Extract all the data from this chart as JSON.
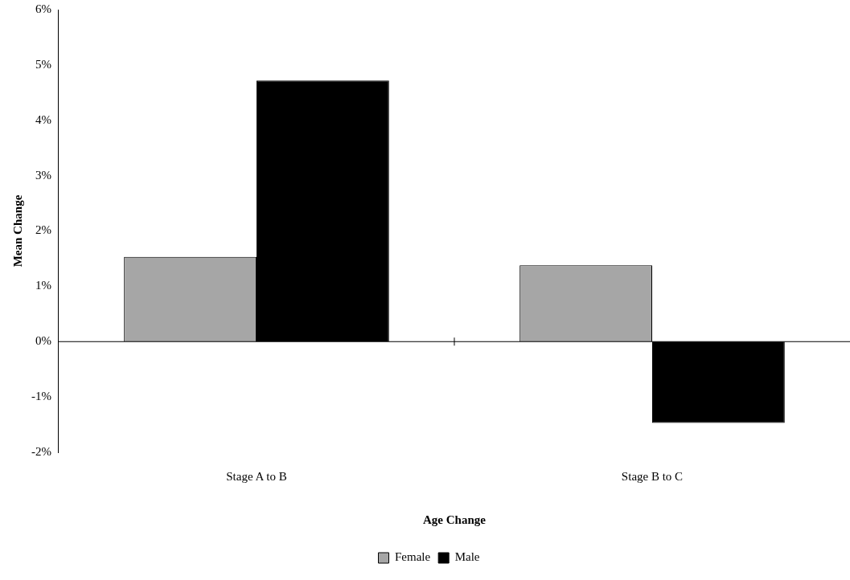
{
  "chart_data": {
    "type": "bar",
    "xlabel": "Age Change",
    "ylabel": "Mean Change",
    "categories": [
      "Stage A to B",
      "Stage B to C"
    ],
    "series": [
      {
        "name": "Female",
        "color": "#a6a6a6",
        "values": [
          1.53,
          1.38
        ]
      },
      {
        "name": "Male",
        "color": "#000000",
        "values": [
          4.72,
          -1.47
        ]
      }
    ],
    "ylim": [
      -2,
      6
    ],
    "yticks": [
      {
        "value": -2,
        "label": "-2%"
      },
      {
        "value": -1,
        "label": "-1%"
      },
      {
        "value": 0,
        "label": "0%"
      },
      {
        "value": 1,
        "label": "1%"
      },
      {
        "value": 2,
        "label": "2%"
      },
      {
        "value": 3,
        "label": "3%"
      },
      {
        "value": 4,
        "label": "4%"
      },
      {
        "value": 5,
        "label": "5%"
      },
      {
        "value": 6,
        "label": "6%"
      }
    ],
    "ref_lines": [
      {
        "axis": "y",
        "value": 0,
        "color": "#000000"
      }
    ],
    "grid": false,
    "legend": "bottom"
  }
}
